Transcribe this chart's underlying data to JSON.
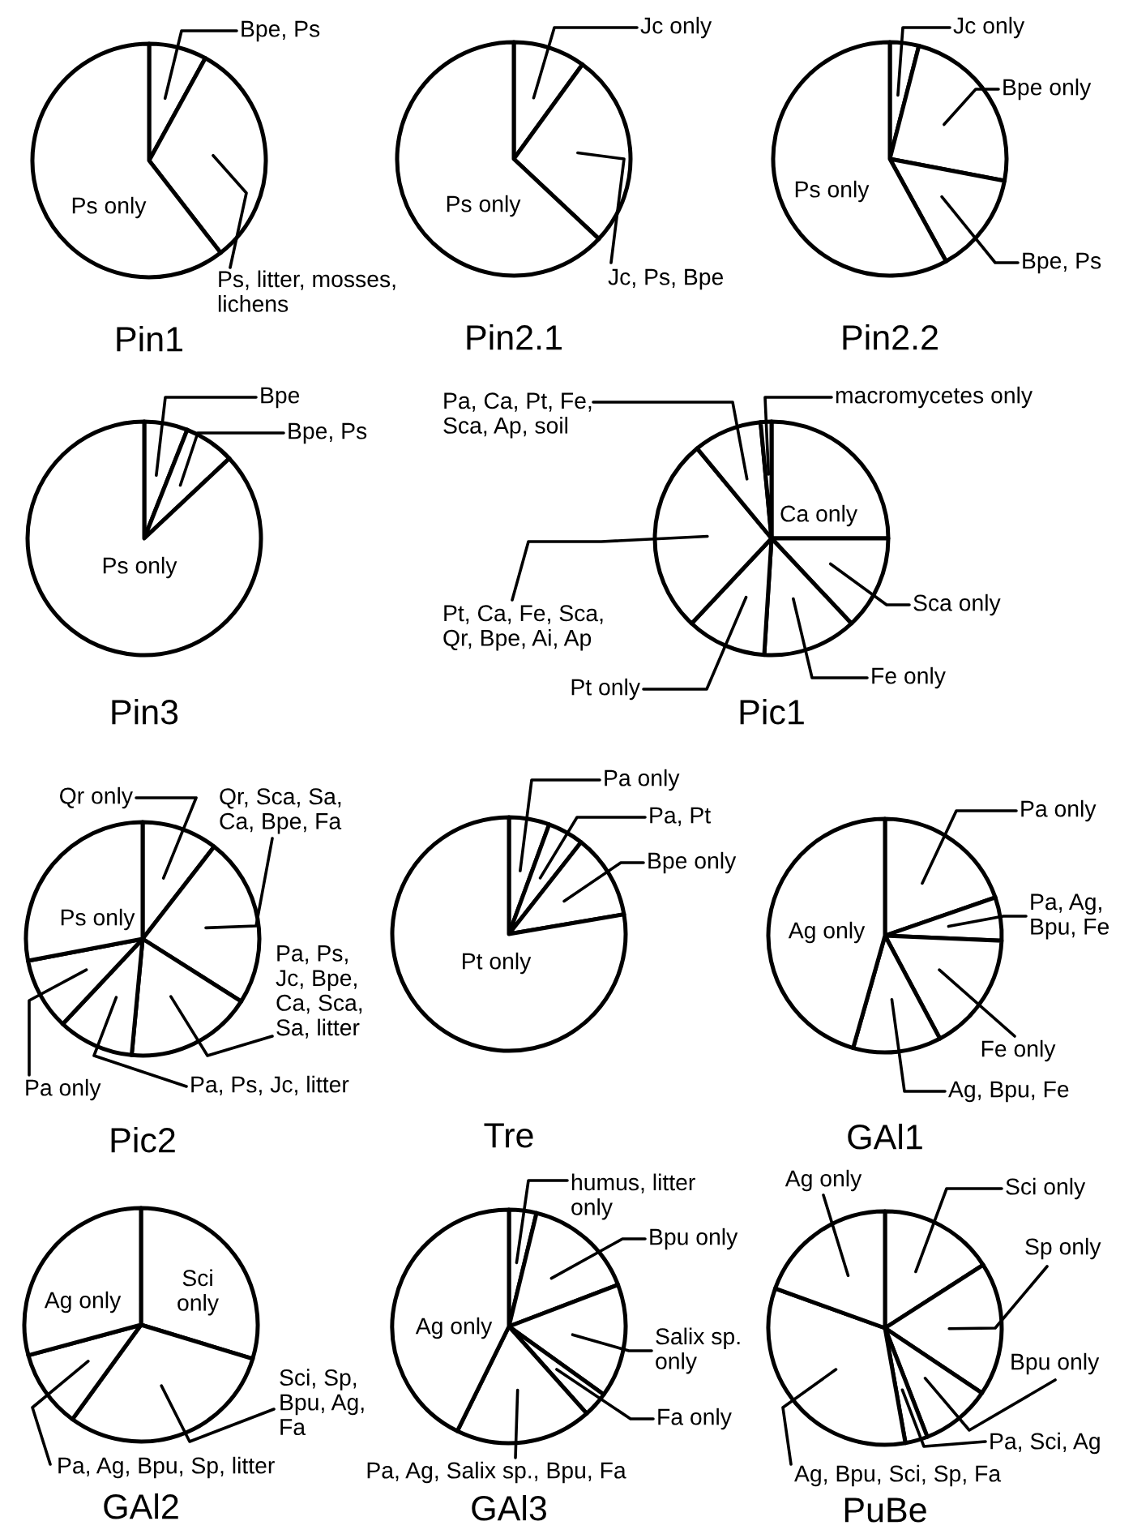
{
  "chart_data": [
    {
      "type": "pie",
      "title": "Pin1",
      "categories": [
        "Bpe, Ps",
        "Ps, litter, mosses, lichens",
        "Ps only"
      ],
      "values": [
        8,
        31.5,
        60.5
      ],
      "colors": [
        "#ffffff",
        "#ffffff",
        "#ffffff"
      ]
    },
    {
      "type": "pie",
      "title": "Pin2.1",
      "categories": [
        "Jc only",
        "Jc, Ps, Bpe",
        "Ps only"
      ],
      "values": [
        10,
        27,
        63
      ],
      "colors": [
        "#ffffff",
        "#ffffff",
        "#ffffff"
      ]
    },
    {
      "type": "pie",
      "title": "Pin2.2",
      "categories": [
        "Jc only",
        "Bpe only",
        "Bpe, Ps",
        "Ps only"
      ],
      "values": [
        4,
        24,
        14,
        58
      ],
      "colors": [
        "#ffffff",
        "#ffffff",
        "#ffffff",
        "#ffffff"
      ]
    },
    {
      "type": "pie",
      "title": "Pin3",
      "categories": [
        "Bpe",
        "Bpe, Ps",
        "Ps only"
      ],
      "values": [
        6,
        7,
        87
      ],
      "colors": [
        "#ffffff",
        "#ffffff",
        "#ffffff"
      ]
    },
    {
      "type": "pie",
      "title": "Pic1",
      "categories": [
        "Ca only",
        "Sca only",
        "Fe only",
        "Pt only",
        "Pt, Ca, Fe, Sca, Qr, Bpe, Ai, Ap",
        "Pa, Ca, Pt, Fe, Sca, Ap, soil",
        "macromycetes only"
      ],
      "values": [
        25,
        13,
        13,
        11,
        27,
        9.5,
        1.5
      ],
      "colors": [
        "#ffffff",
        "#ffffff",
        "#ffffff",
        "#ffffff",
        "#ffffff",
        "#ffffff",
        "#ffffff"
      ]
    },
    {
      "type": "pie",
      "title": "Pic2",
      "categories": [
        "Qr only",
        "Qr, Sca, Sa, Ca, Bpe, Fa",
        "Pa, Ps, Jc, Bpe, Ca, Sca, Sa, litter",
        "Pa, Ps, Jc, litter",
        "Pa only",
        "Ps only"
      ],
      "values": [
        10.5,
        23.5,
        17.5,
        10.5,
        10,
        28
      ],
      "colors": [
        "#ffffff",
        "#ffffff",
        "#ffffff",
        "#ffffff",
        "#ffffff",
        "#ffffff"
      ]
    },
    {
      "type": "pie",
      "title": "Tre",
      "categories": [
        "Pa only",
        "Pa, Pt",
        "Bpe only",
        "Pt only"
      ],
      "values": [
        5.6,
        5,
        11.7,
        77.7
      ],
      "colors": [
        "#ffffff",
        "#ffffff",
        "#ffffff",
        "#ffffff"
      ]
    },
    {
      "type": "pie",
      "title": "GAl1",
      "categories": [
        "Pa only",
        "Pa, Ag, Bpu, Fe",
        "Fe only",
        "Ag, Bpu, Fe",
        "Ag only"
      ],
      "values": [
        19.7,
        6,
        16.5,
        12.2,
        45.6
      ],
      "colors": [
        "#ffffff",
        "#ffffff",
        "#ffffff",
        "#ffffff",
        "#ffffff"
      ]
    },
    {
      "type": "pie",
      "title": "GAl2",
      "categories": [
        "Sci only",
        "Sci, Sp, Bpu, Ag, Fa",
        "Pa, Ag, Bpu, Sp, litter",
        "Ag only"
      ],
      "values": [
        29.7,
        30.3,
        10.8,
        29.2
      ],
      "colors": [
        "#ffffff",
        "#ffffff",
        "#ffffff",
        "#ffffff"
      ]
    },
    {
      "type": "pie",
      "title": "GAl3",
      "categories": [
        "humus, litter only",
        "Bpu only",
        "Salix sp. only",
        "Fa only",
        "Pa, Ag, Salix sp., Bpu, Fa",
        "Ag only"
      ],
      "values": [
        3.8,
        15.4,
        15.7,
        3.5,
        18.9,
        42.7
      ],
      "colors": [
        "#ffffff",
        "#ffffff",
        "#ffffff",
        "#ffffff",
        "#ffffff",
        "#ffffff"
      ]
    },
    {
      "type": "pie",
      "title": "PuBe",
      "categories": [
        "Sci only",
        "Sp only",
        "Bpu only",
        "Pa, Sci, Ag",
        "Ag, Bpu, Sci, Sp, Fa",
        "Ag only"
      ],
      "values": [
        15.9,
        18.5,
        9.7,
        3.1,
        33.3,
        19.5
      ],
      "colors": [
        "#ffffff",
        "#ffffff",
        "#ffffff",
        "#ffffff",
        "#ffffff",
        "#ffffff"
      ]
    }
  ]
}
